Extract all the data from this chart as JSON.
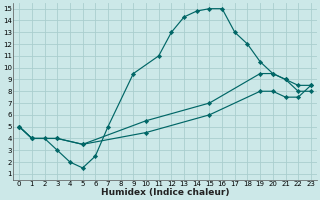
{
  "xlabel": "Humidex (Indice chaleur)",
  "background_color": "#cce8e8",
  "grid_color": "#aacece",
  "line_color": "#006666",
  "xlim_min": -0.5,
  "xlim_max": 23.5,
  "ylim_min": 0.5,
  "ylim_max": 15.5,
  "xticks": [
    0,
    1,
    2,
    3,
    4,
    5,
    6,
    7,
    8,
    9,
    10,
    11,
    12,
    13,
    14,
    15,
    16,
    17,
    18,
    19,
    20,
    21,
    22,
    23
  ],
  "yticks": [
    1,
    2,
    3,
    4,
    5,
    6,
    7,
    8,
    9,
    10,
    11,
    12,
    13,
    14,
    15
  ],
  "line1_x": [
    0,
    1,
    2,
    3,
    4,
    5,
    6,
    7,
    9,
    11,
    12,
    13,
    14,
    15,
    16,
    17,
    18,
    19,
    20,
    21,
    22,
    23
  ],
  "line1_y": [
    5,
    4,
    4,
    3,
    2,
    1.5,
    2.5,
    5,
    9.5,
    11,
    13,
    14.3,
    14.8,
    15,
    15,
    13,
    12,
    10.5,
    9.5,
    9,
    8,
    8
  ],
  "line2_x": [
    0,
    1,
    3,
    5,
    10,
    15,
    19,
    20,
    21,
    22,
    23
  ],
  "line2_y": [
    5,
    4,
    4,
    3.5,
    5.5,
    7.0,
    9.5,
    9.5,
    9.0,
    8.5,
    8.5
  ],
  "line3_x": [
    0,
    1,
    3,
    5,
    10,
    15,
    19,
    20,
    21,
    22,
    23
  ],
  "line3_y": [
    5,
    4,
    4,
    3.5,
    4.5,
    6.0,
    8.0,
    8.0,
    7.5,
    7.5,
    8.5
  ],
  "tickfontsize": 5.0,
  "xlabel_fontsize": 6.5
}
